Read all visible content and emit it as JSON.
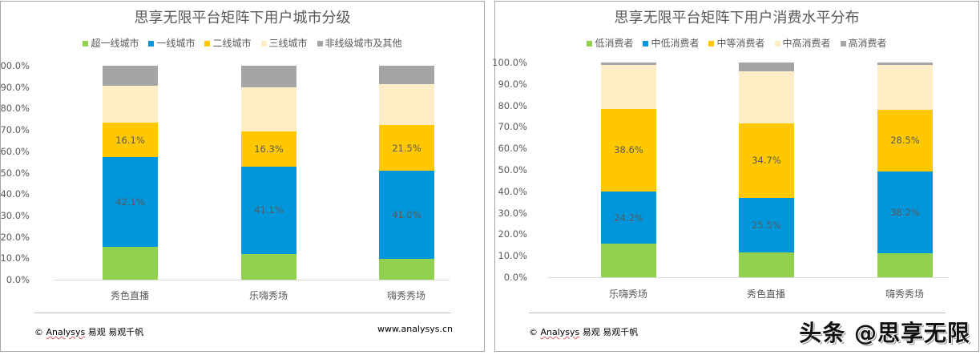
{
  "colors": {
    "green": "#92d050",
    "blue": "#0096dc",
    "yellow": "#ffc800",
    "cream": "#ffeec5",
    "gray": "#a5a5a5"
  },
  "chart_data": [
    {
      "type": "bar",
      "stacked": true,
      "percent": true,
      "title": "思享无限平台矩阵下用户城市分级",
      "xlabel": "",
      "ylabel": "",
      "ylim": [
        0,
        100
      ],
      "yticks": [
        "0.0%",
        "10.0%",
        "20.0%",
        "30.0%",
        "40.0%",
        "50.0%",
        "60.0%",
        "70.0%",
        "80.0%",
        "90.0%",
        "100.0%"
      ],
      "legend_position": "top",
      "categories": [
        "秀色直播",
        "乐嗨秀场",
        "嗨秀秀场"
      ],
      "series": [
        {
          "name": "超一线城市",
          "color": "#92d050",
          "values": [
            15.2,
            11.9,
            9.8
          ],
          "labels": [
            "",
            "",
            ""
          ]
        },
        {
          "name": "一线城市",
          "color": "#0096dc",
          "values": [
            42.1,
            41.1,
            41.0
          ],
          "labels": [
            "42.1%",
            "41.1%",
            "41.0%"
          ]
        },
        {
          "name": "二线城市",
          "color": "#ffc800",
          "values": [
            16.1,
            16.3,
            21.5
          ],
          "labels": [
            "16.1%",
            "16.3%",
            "21.5%"
          ]
        },
        {
          "name": "三线城市",
          "color": "#ffeec5",
          "values": [
            17.2,
            20.6,
            19.1
          ],
          "labels": [
            "",
            "",
            ""
          ]
        },
        {
          "name": "非线级城市及其他",
          "color": "#a5a5a5",
          "values": [
            9.4,
            10.1,
            8.6
          ],
          "labels": [
            "",
            "",
            ""
          ]
        }
      ]
    },
    {
      "type": "bar",
      "stacked": true,
      "percent": true,
      "title": "思享无限平台矩阵下用户消费水平分布",
      "xlabel": "",
      "ylabel": "",
      "ylim": [
        0,
        100
      ],
      "yticks": [
        "0.0%",
        "10.0%",
        "20.0%",
        "30.0%",
        "40.0%",
        "50.0%",
        "60.0%",
        "70.0%",
        "80.0%",
        "90.0%",
        "100.0%"
      ],
      "legend_position": "top",
      "categories": [
        "乐嗨秀场",
        "秀色直播",
        "嗨秀秀场"
      ],
      "series": [
        {
          "name": "低消费者",
          "color": "#92d050",
          "values": [
            15.7,
            11.6,
            11.2
          ],
          "labels": [
            "",
            "",
            ""
          ]
        },
        {
          "name": "中低消费者",
          "color": "#0096dc",
          "values": [
            24.2,
            25.5,
            38.2
          ],
          "labels": [
            "24.2%",
            "25.5%",
            "38.2%"
          ]
        },
        {
          "name": "中等消费者",
          "color": "#ffc800",
          "values": [
            38.6,
            34.7,
            28.5
          ],
          "labels": [
            "38.6%",
            "34.7%",
            "28.5%"
          ]
        },
        {
          "name": "中高消费者",
          "color": "#ffeec5",
          "values": [
            20.5,
            24.1,
            21.1
          ],
          "labels": [
            "",
            "",
            ""
          ]
        },
        {
          "name": "高消费者",
          "color": "#a5a5a5",
          "values": [
            1.0,
            4.1,
            1.0
          ],
          "labels": [
            "",
            "",
            ""
          ]
        }
      ]
    }
  ],
  "footer": {
    "left_copyright": "©",
    "left_brand": "Analysys",
    "left_rest": "易观 易观千帆",
    "right_url": "www.analysys.cn"
  },
  "watermark": "头条 @思享无限"
}
